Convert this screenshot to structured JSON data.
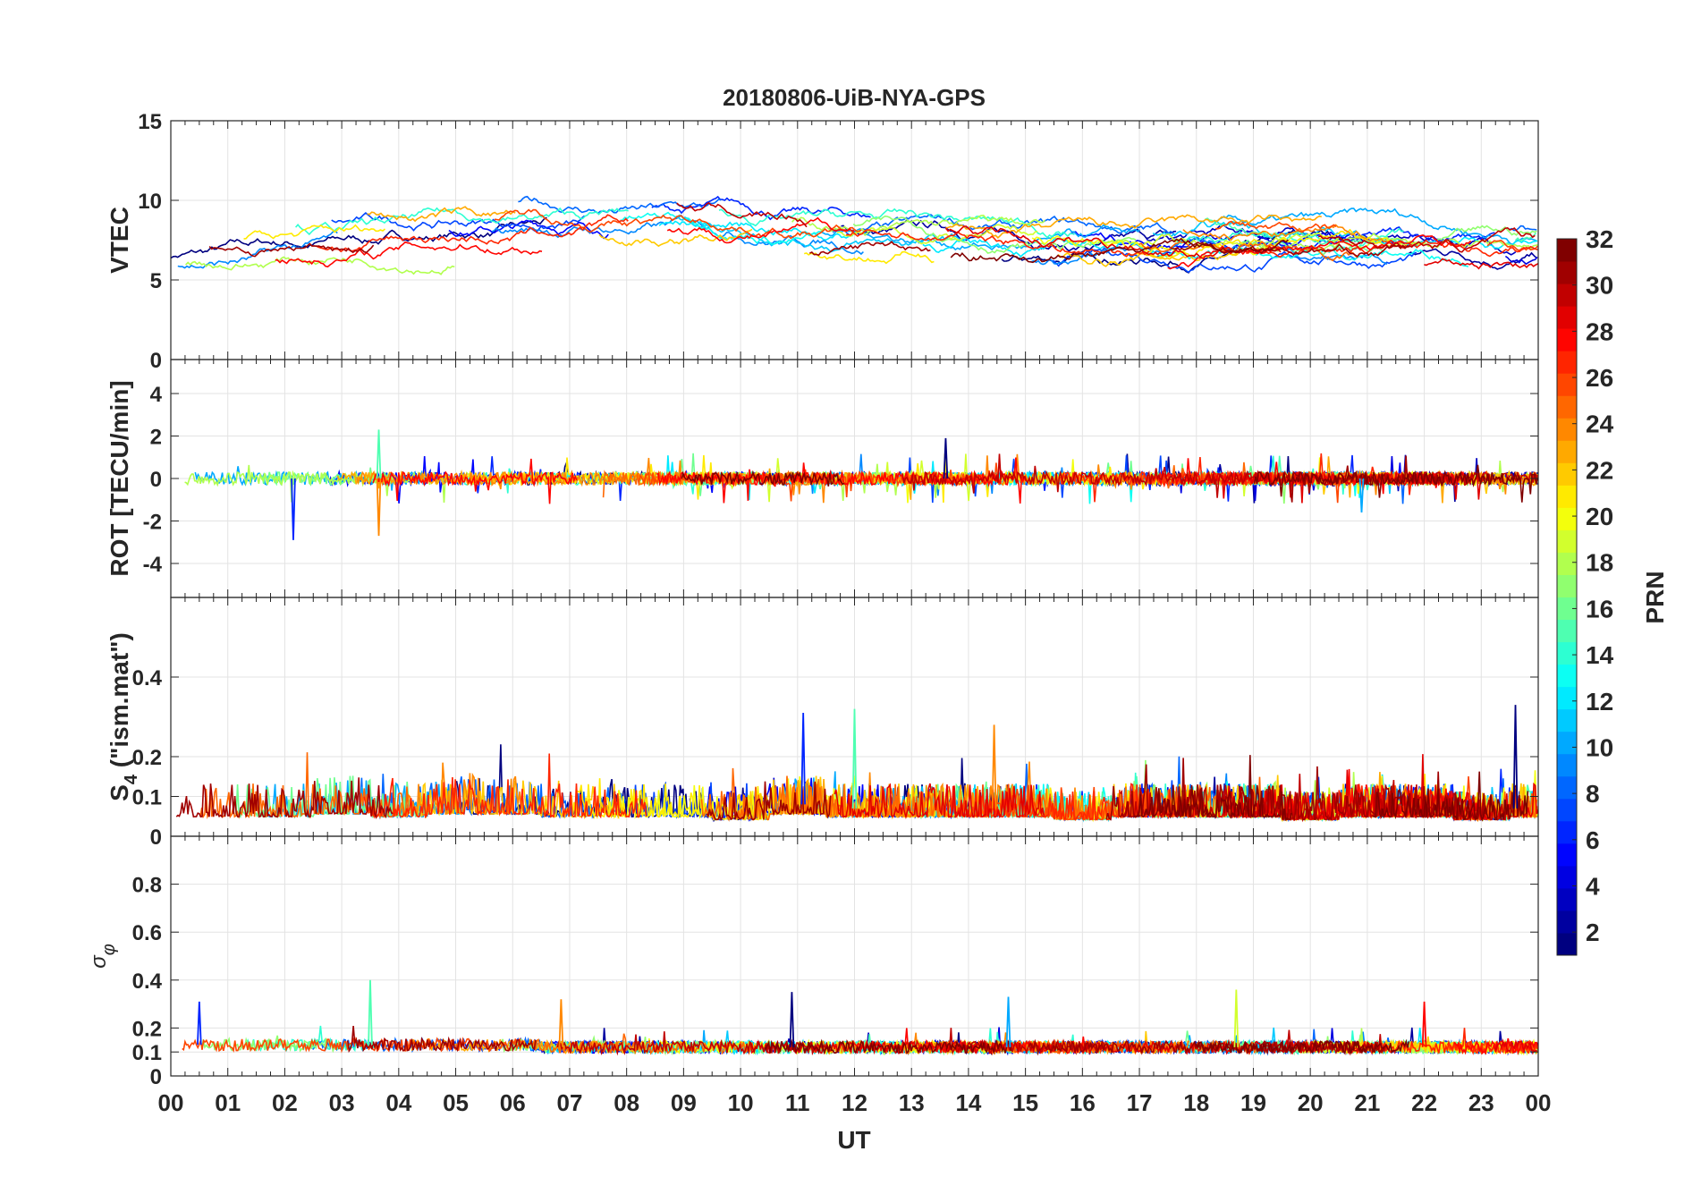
{
  "chart_data": {
    "type": "line",
    "title": "20180806-UiB-NYA-GPS",
    "xlabel": "UT",
    "x_ticks": [
      "00",
      "01",
      "02",
      "03",
      "04",
      "05",
      "06",
      "07",
      "08",
      "09",
      "10",
      "11",
      "12",
      "13",
      "14",
      "15",
      "16",
      "17",
      "18",
      "19",
      "20",
      "21",
      "22",
      "23",
      "00"
    ],
    "xlim": [
      0,
      24
    ],
    "grid": true,
    "colorbar": {
      "label": "PRN",
      "range": [
        1,
        32
      ],
      "ticks": [
        "2",
        "4",
        "6",
        "8",
        "10",
        "12",
        "14",
        "16",
        "18",
        "20",
        "22",
        "24",
        "26",
        "28",
        "30",
        "32"
      ],
      "colormap": "jet",
      "placement": "right"
    },
    "panels": [
      {
        "ylabel": "VTEC",
        "ylim": [
          0,
          15
        ],
        "yticks": [
          "0",
          "5",
          "10",
          "15"
        ],
        "hourly_typical": [
          7,
          7.3,
          7.8,
          8,
          8.5,
          9,
          8.8,
          8.7,
          8.5,
          8.3,
          8,
          7.8,
          7.5,
          7.3,
          7,
          6.8,
          6.8,
          7,
          7.8,
          7.5,
          6.8,
          7.2,
          7.2,
          7,
          7.2
        ]
      },
      {
        "ylabel": "ROT [TECU/min]",
        "ylim": [
          -5.6,
          5.6
        ],
        "yticks": [
          "-4",
          "-2",
          "0",
          "2",
          "4"
        ],
        "hourly_typical": [
          0,
          0,
          0,
          0,
          0,
          0,
          0,
          0,
          0,
          0,
          0,
          0,
          0,
          0,
          0,
          0,
          0,
          0,
          0,
          0,
          0,
          0,
          0,
          0,
          0
        ],
        "notable_peaks": [
          {
            "x": 2.15,
            "y": -2.9
          },
          {
            "x": 3.65,
            "y": 2.3
          },
          {
            "x": 3.65,
            "y": -2.7
          },
          {
            "x": 13.6,
            "y": 1.9
          },
          {
            "x": 20.9,
            "y": -1.6
          }
        ]
      },
      {
        "ylabel_main": "S",
        "ylabel_sub": "4",
        "ylabel_rest": " (\"ism.mat\")",
        "ylim": [
          0,
          0.6
        ],
        "yticks": [
          "0",
          "0.1",
          "0.2",
          "0.4"
        ],
        "hourly_typical": [
          0.07,
          0.07,
          0.07,
          0.08,
          0.07,
          0.08,
          0.08,
          0.07,
          0.07,
          0.07,
          0.06,
          0.08,
          0.07,
          0.07,
          0.07,
          0.07,
          0.06,
          0.07,
          0.07,
          0.07,
          0.06,
          0.07,
          0.07,
          0.06,
          0.07
        ],
        "notable_peaks": [
          {
            "x": 11.1,
            "y": 0.31
          },
          {
            "x": 12.0,
            "y": 0.32
          },
          {
            "x": 14.45,
            "y": 0.28
          },
          {
            "x": 23.6,
            "y": 0.33
          }
        ]
      },
      {
        "ylabel_main": "σ",
        "ylabel_sub": "φ",
        "ylim": [
          0,
          1
        ],
        "yticks": [
          "0",
          "0.1",
          "0.2",
          "0.4",
          "0.6",
          "0.8"
        ],
        "hourly_typical": [
          0.13,
          0.13,
          0.13,
          0.13,
          0.13,
          0.13,
          0.13,
          0.12,
          0.12,
          0.12,
          0.12,
          0.12,
          0.12,
          0.12,
          0.12,
          0.12,
          0.12,
          0.12,
          0.12,
          0.12,
          0.12,
          0.12,
          0.12,
          0.12,
          0.12
        ],
        "notable_peaks": [
          {
            "x": 0.5,
            "y": 0.31
          },
          {
            "x": 3.5,
            "y": 0.4
          },
          {
            "x": 6.85,
            "y": 0.32
          },
          {
            "x": 10.9,
            "y": 0.35
          },
          {
            "x": 14.7,
            "y": 0.33
          },
          {
            "x": 18.7,
            "y": 0.36
          },
          {
            "x": 22.0,
            "y": 0.31
          }
        ]
      }
    ]
  }
}
